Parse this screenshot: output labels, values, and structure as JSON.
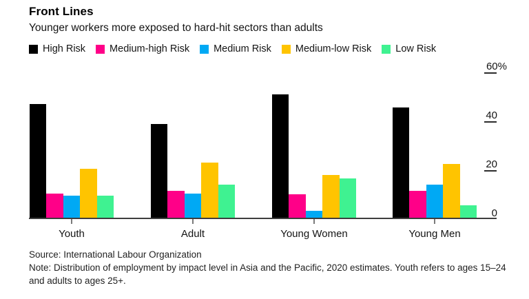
{
  "header": {
    "title": "Front Lines",
    "subtitle": "Younger workers more exposed to hard-hit sectors than adults"
  },
  "legend": {
    "items": [
      {
        "label": "High Risk",
        "color": "#000000"
      },
      {
        "label": "Medium-high Risk",
        "color": "#FF0088"
      },
      {
        "label": "Medium Risk",
        "color": "#00A9F4"
      },
      {
        "label": "Medium-low Risk",
        "color": "#FFC400"
      },
      {
        "label": "Low Risk",
        "color": "#3FF291"
      }
    ]
  },
  "chart_data": {
    "type": "bar",
    "title": "Front Lines",
    "subtitle": "Younger workers more exposed to hard-hit sectors than adults",
    "categories": [
      "Youth",
      "Adult",
      "Young Women",
      "Young Men"
    ],
    "series": [
      {
        "name": "High Risk",
        "color": "#000000",
        "values": [
          47,
          39,
          51,
          45.5
        ]
      },
      {
        "name": "Medium-high Risk",
        "color": "#FF0088",
        "values": [
          10.5,
          11.5,
          10,
          11.5
        ]
      },
      {
        "name": "Medium Risk",
        "color": "#00A9F4",
        "values": [
          9.5,
          10.5,
          3.5,
          14
        ]
      },
      {
        "name": "Medium-low Risk",
        "color": "#FFC400",
        "values": [
          20.5,
          23,
          18,
          22.5
        ]
      },
      {
        "name": "Low Risk",
        "color": "#3FF291",
        "values": [
          9.5,
          14,
          16.5,
          5.5
        ]
      }
    ],
    "xlabel": "",
    "ylabel": "%",
    "ylim": [
      0,
      60
    ],
    "yticks": [
      {
        "label": "60%",
        "value": 60
      },
      {
        "label": "40",
        "value": 40
      },
      {
        "label": "20",
        "value": 20
      },
      {
        "label": "0",
        "value": 0
      }
    ],
    "grid": false,
    "legend_position": "top"
  },
  "footer": {
    "source": "Source: International Labour Organization",
    "note": "Note: Distribution of employment by impact level in Asia and the Pacific, 2020 estimates. Youth refers to ages 15–24 and adults to ages 25+."
  }
}
